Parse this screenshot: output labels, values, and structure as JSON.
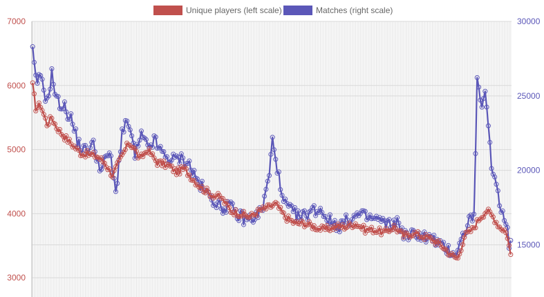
{
  "chart_data": {
    "type": "line",
    "title": "",
    "legend_position": "top-center",
    "grid": true,
    "x_points": 300,
    "series": [
      {
        "name": "Unique players (left scale)",
        "axis": "left",
        "color": "#c0504d",
        "anchors": [
          [
            0,
            6000
          ],
          [
            2,
            5650
          ],
          [
            5,
            5700
          ],
          [
            9,
            5400
          ],
          [
            12,
            5500
          ],
          [
            15,
            5350
          ],
          [
            20,
            5200
          ],
          [
            26,
            5050
          ],
          [
            30,
            4950
          ],
          [
            40,
            4900
          ],
          [
            45,
            4800
          ],
          [
            50,
            4600
          ],
          [
            56,
            4900
          ],
          [
            60,
            5100
          ],
          [
            63,
            5050
          ],
          [
            67,
            4850
          ],
          [
            72,
            5000
          ],
          [
            78,
            4800
          ],
          [
            85,
            4750
          ],
          [
            90,
            4650
          ],
          [
            95,
            4700
          ],
          [
            100,
            4550
          ],
          [
            106,
            4400
          ],
          [
            112,
            4300
          ],
          [
            118,
            4250
          ],
          [
            124,
            4050
          ],
          [
            130,
            4000
          ],
          [
            136,
            3950
          ],
          [
            142,
            4050
          ],
          [
            148,
            4100
          ],
          [
            152,
            4150
          ],
          [
            158,
            3950
          ],
          [
            164,
            3850
          ],
          [
            170,
            3850
          ],
          [
            176,
            3800
          ],
          [
            182,
            3750
          ],
          [
            190,
            3800
          ],
          [
            196,
            3800
          ],
          [
            202,
            3850
          ],
          [
            208,
            3750
          ],
          [
            214,
            3750
          ],
          [
            220,
            3700
          ],
          [
            226,
            3800
          ],
          [
            232,
            3650
          ],
          [
            238,
            3700
          ],
          [
            244,
            3650
          ],
          [
            250,
            3600
          ],
          [
            256,
            3500
          ],
          [
            262,
            3350
          ],
          [
            266,
            3300
          ],
          [
            270,
            3650
          ],
          [
            275,
            3750
          ],
          [
            280,
            3950
          ],
          [
            284,
            4050
          ],
          [
            288,
            3950
          ],
          [
            292,
            3800
          ],
          [
            295,
            3750
          ],
          [
            297,
            3650
          ],
          [
            299,
            3350
          ]
        ]
      },
      {
        "name": "Matches (right scale)",
        "axis": "right",
        "color": "#5b57b8",
        "anchors": [
          [
            0,
            28000
          ],
          [
            1,
            27000
          ],
          [
            2,
            26000
          ],
          [
            6,
            26100
          ],
          [
            9,
            24500
          ],
          [
            12,
            26500
          ],
          [
            15,
            24700
          ],
          [
            20,
            24200
          ],
          [
            24,
            23500
          ],
          [
            28,
            22000
          ],
          [
            32,
            21300
          ],
          [
            38,
            21700
          ],
          [
            43,
            20000
          ],
          [
            48,
            21300
          ],
          [
            52,
            18500
          ],
          [
            56,
            22600
          ],
          [
            60,
            23200
          ],
          [
            64,
            21000
          ],
          [
            68,
            22300
          ],
          [
            72,
            21500
          ],
          [
            76,
            22000
          ],
          [
            82,
            21000
          ],
          [
            88,
            20700
          ],
          [
            92,
            20800
          ],
          [
            97,
            20600
          ],
          [
            102,
            19500
          ],
          [
            108,
            18500
          ],
          [
            114,
            18000
          ],
          [
            118,
            17400
          ],
          [
            122,
            17700
          ],
          [
            128,
            17000
          ],
          [
            134,
            16700
          ],
          [
            140,
            16900
          ],
          [
            144,
            17500
          ],
          [
            148,
            19700
          ],
          [
            150,
            22000
          ],
          [
            152,
            21000
          ],
          [
            156,
            18000
          ],
          [
            162,
            17200
          ],
          [
            168,
            16800
          ],
          [
            174,
            17300
          ],
          [
            180,
            17400
          ],
          [
            186,
            16600
          ],
          [
            192,
            16300
          ],
          [
            198,
            16700
          ],
          [
            204,
            17000
          ],
          [
            210,
            16800
          ],
          [
            216,
            16700
          ],
          [
            222,
            16300
          ],
          [
            228,
            16500
          ],
          [
            234,
            15500
          ],
          [
            240,
            15800
          ],
          [
            246,
            15500
          ],
          [
            252,
            15300
          ],
          [
            256,
            14800
          ],
          [
            262,
            14600
          ],
          [
            264,
            14400
          ],
          [
            268,
            15200
          ],
          [
            272,
            16500
          ],
          [
            276,
            17000
          ],
          [
            278,
            25800
          ],
          [
            280,
            24500
          ],
          [
            283,
            25000
          ],
          [
            285,
            23000
          ],
          [
            287,
            20000
          ],
          [
            290,
            19500
          ],
          [
            292,
            17500
          ],
          [
            296,
            16800
          ],
          [
            298,
            15000
          ],
          [
            299,
            15300
          ]
        ]
      }
    ],
    "left_axis": {
      "min": 2700,
      "max": 7000,
      "ticks": [
        3000,
        4000,
        5000,
        6000,
        7000
      ]
    },
    "right_axis": {
      "min": 11500,
      "max": 30000,
      "ticks": [
        15000,
        20000,
        25000,
        30000
      ]
    }
  }
}
